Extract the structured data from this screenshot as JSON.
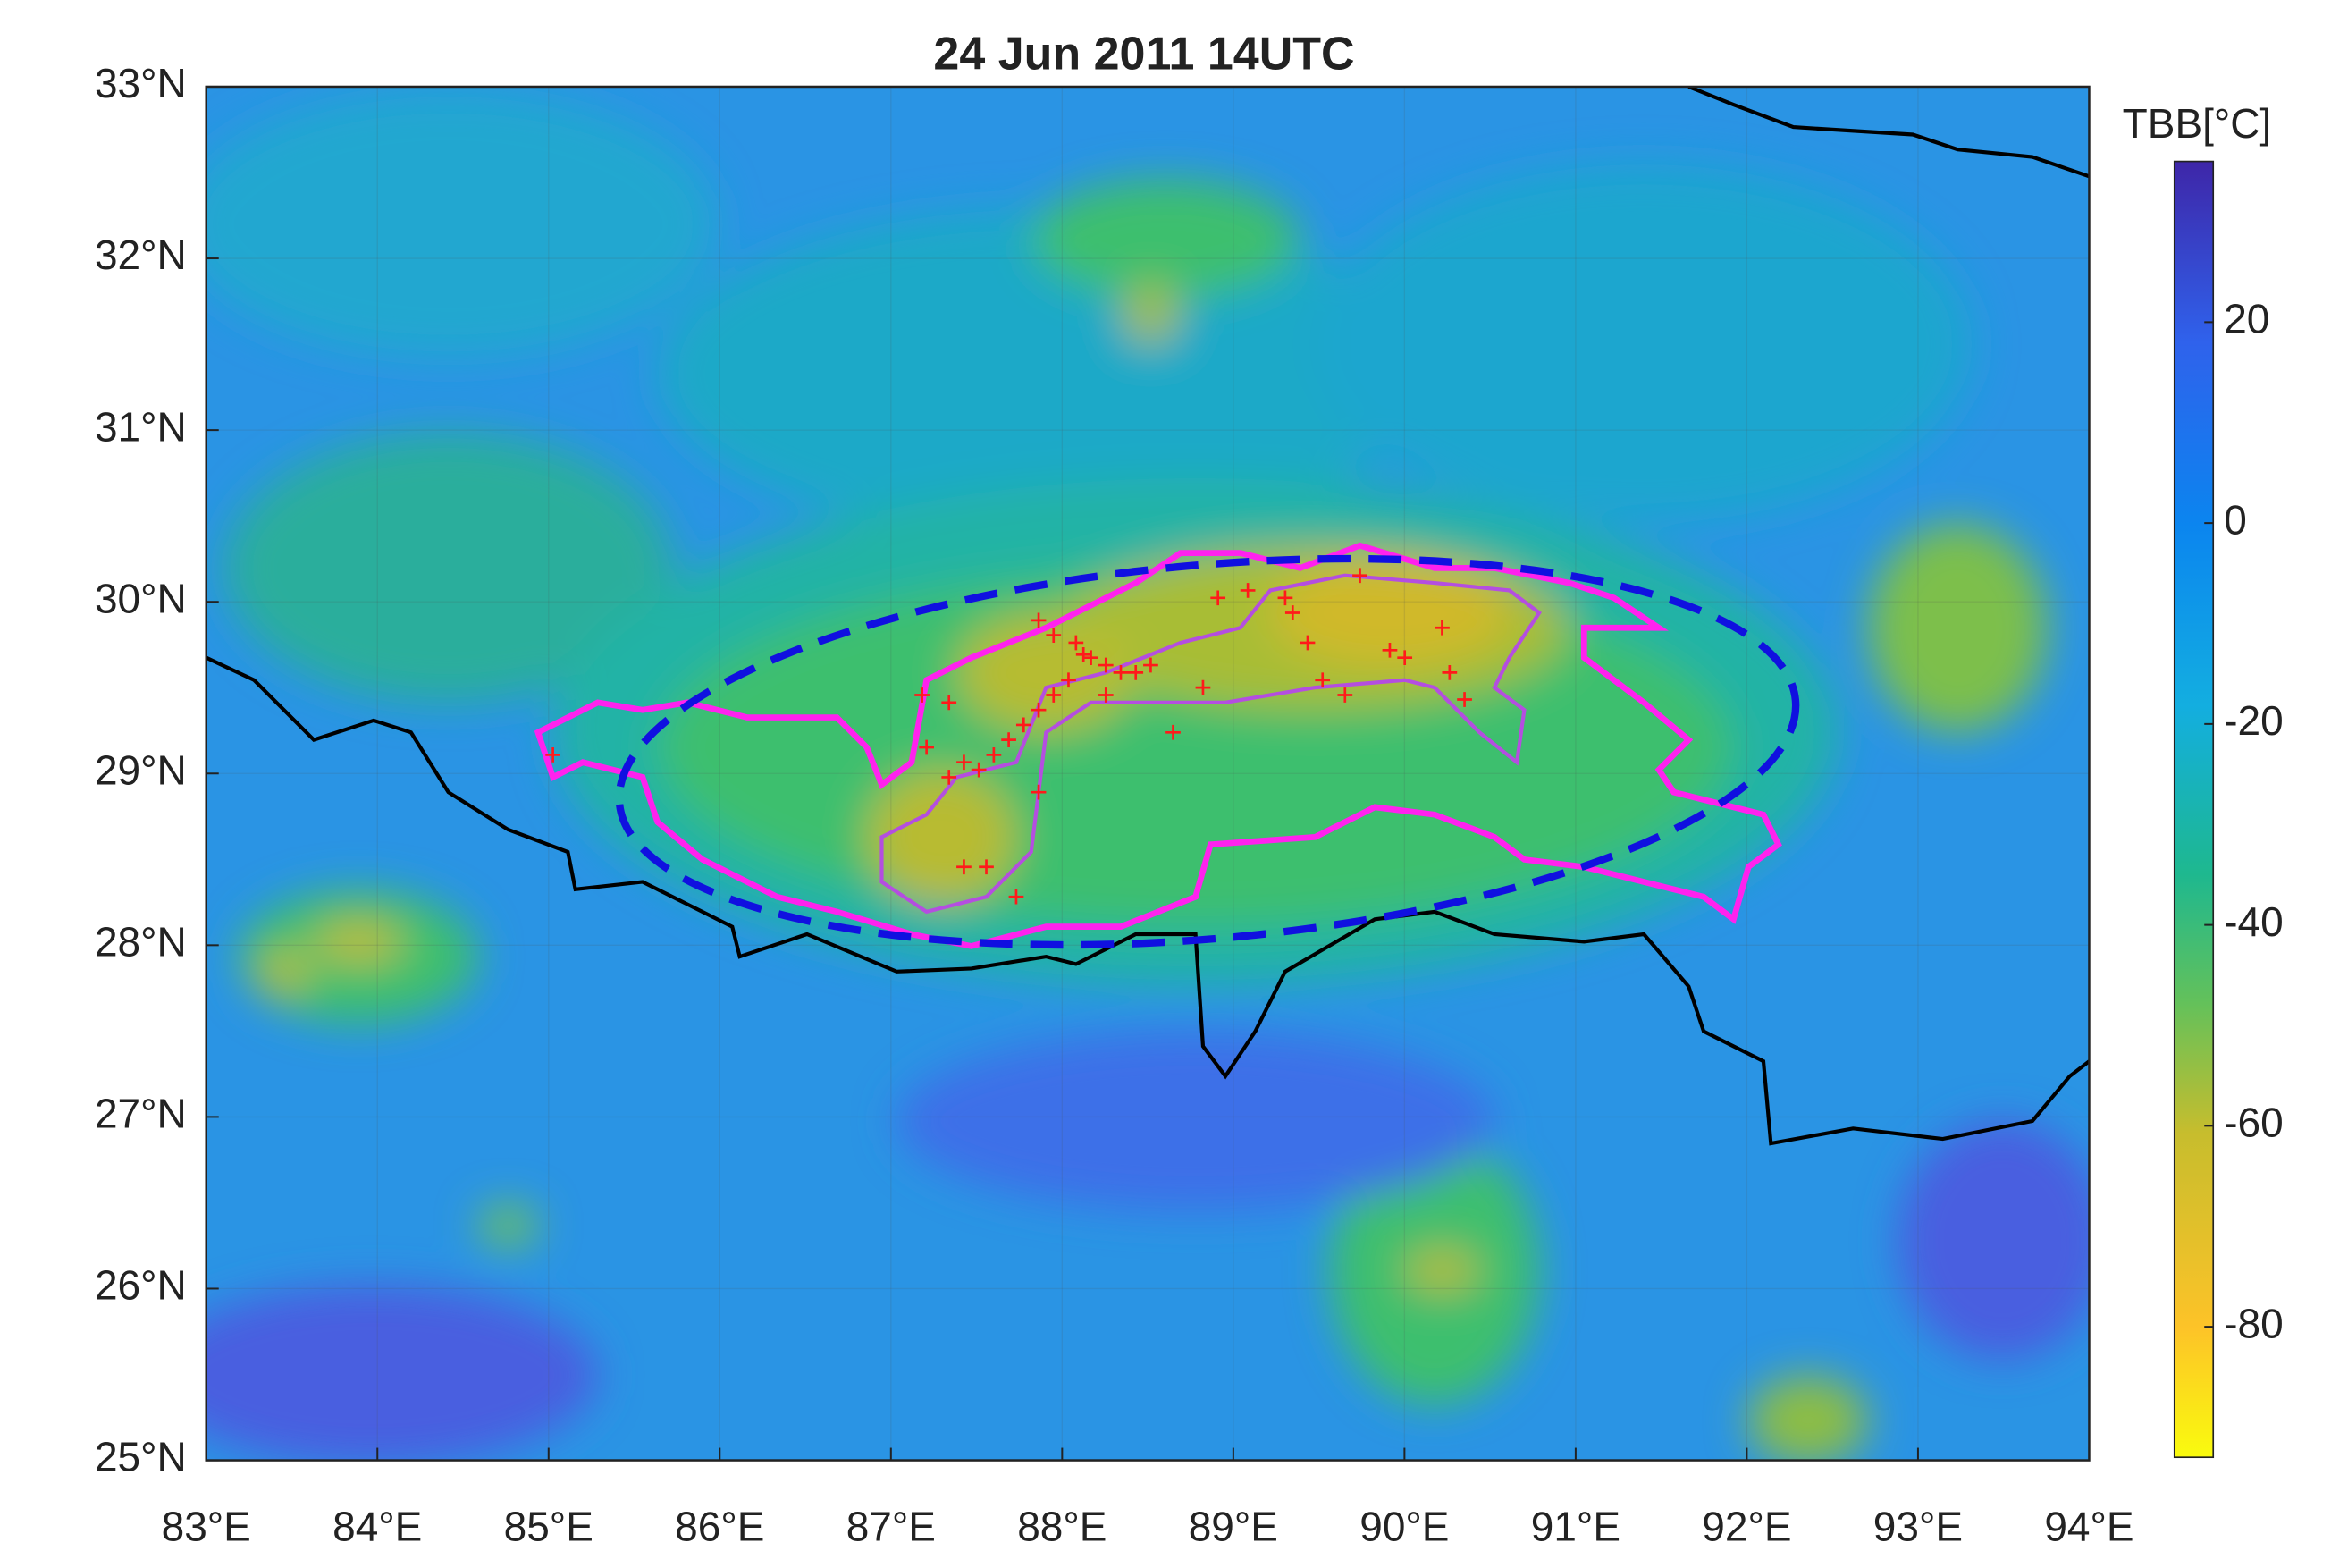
{
  "chart_data": {
    "type": "map",
    "title": "24 Jun 2011 14UTC",
    "xlim": [
      83,
      94
    ],
    "ylim": [
      25,
      33
    ],
    "xticks": [
      {
        "value": 83,
        "label": "83°E"
      },
      {
        "value": 84,
        "label": "84°E"
      },
      {
        "value": 85,
        "label": "85°E"
      },
      {
        "value": 86,
        "label": "86°E"
      },
      {
        "value": 87,
        "label": "87°E"
      },
      {
        "value": 88,
        "label": "88°E"
      },
      {
        "value": 89,
        "label": "89°E"
      },
      {
        "value": 90,
        "label": "90°E"
      },
      {
        "value": 91,
        "label": "91°E"
      },
      {
        "value": 92,
        "label": "92°E"
      },
      {
        "value": 93,
        "label": "93°E"
      },
      {
        "value": 94,
        "label": "94°E"
      }
    ],
    "yticks": [
      {
        "value": 25,
        "label": "25°N"
      },
      {
        "value": 26,
        "label": "26°N"
      },
      {
        "value": 27,
        "label": "27°N"
      },
      {
        "value": 28,
        "label": "28°N"
      },
      {
        "value": 29,
        "label": "29°N"
      },
      {
        "value": 30,
        "label": "30°N"
      },
      {
        "value": 31,
        "label": "31°N"
      },
      {
        "value": 32,
        "label": "32°N"
      },
      {
        "value": 33,
        "label": "33°N"
      }
    ],
    "colorbar_label": "TBB[°C]",
    "clim": [
      -93,
      36
    ],
    "cticks": [
      -80,
      -60,
      -40,
      -20,
      0,
      20
    ],
    "grid": true
  }
}
